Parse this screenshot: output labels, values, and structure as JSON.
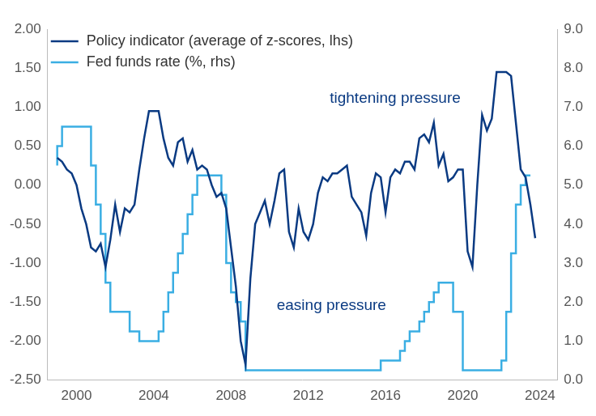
{
  "chart_data": {
    "type": "line",
    "legend": "upper left",
    "grid": false,
    "x": [
      1999.0,
      1999.25,
      1999.5,
      1999.75,
      2000.0,
      2000.25,
      2000.5,
      2000.75,
      2001.0,
      2001.25,
      2001.5,
      2001.75,
      2002.0,
      2002.25,
      2002.5,
      2002.75,
      2003.0,
      2003.25,
      2003.5,
      2003.75,
      2004.0,
      2004.25,
      2004.5,
      2004.75,
      2005.0,
      2005.25,
      2005.5,
      2005.75,
      2006.0,
      2006.25,
      2006.5,
      2006.75,
      2007.0,
      2007.25,
      2007.5,
      2007.75,
      2008.0,
      2008.25,
      2008.5,
      2008.75,
      2009.0,
      2009.25,
      2009.5,
      2009.75,
      2010.0,
      2010.25,
      2010.5,
      2010.75,
      2011.0,
      2011.25,
      2011.5,
      2011.75,
      2012.0,
      2012.25,
      2012.5,
      2012.75,
      2013.0,
      2013.25,
      2013.5,
      2013.75,
      2014.0,
      2014.25,
      2014.5,
      2014.75,
      2015.0,
      2015.25,
      2015.5,
      2015.75,
      2016.0,
      2016.25,
      2016.5,
      2016.75,
      2017.0,
      2017.25,
      2017.5,
      2017.75,
      2018.0,
      2018.25,
      2018.5,
      2018.75,
      2019.0,
      2019.25,
      2019.5,
      2019.75,
      2020.0,
      2020.25,
      2020.5,
      2020.75,
      2021.0,
      2021.25,
      2021.5,
      2021.75,
      2022.0,
      2022.25,
      2022.5,
      2022.75,
      2023.0,
      2023.25,
      2023.5,
      2023.75
    ],
    "xlim": [
      1998.5,
      2024.9
    ],
    "xticks": [
      2000,
      2004,
      2008,
      2012,
      2016,
      2020,
      2024
    ],
    "ylim": [
      -2.5,
      2.0
    ],
    "yticks": [
      {
        "value": -2.5,
        "label": "-2.50"
      },
      {
        "value": -2.0,
        "label": "-2.00"
      },
      {
        "value": -1.5,
        "label": "-1.50"
      },
      {
        "value": -1.0,
        "label": "-1.00"
      },
      {
        "value": -0.5,
        "label": "-0.50"
      },
      {
        "value": 0,
        "label": "0.00"
      },
      {
        "value": 0.5,
        "label": "0.50"
      },
      {
        "value": 1.0,
        "label": "1.00"
      },
      {
        "value": 1.5,
        "label": "1.50"
      },
      {
        "value": 2.0,
        "label": "2.00"
      }
    ],
    "y2lim": [
      0,
      9
    ],
    "y2ticks": [
      {
        "value": 0,
        "label": "0.0"
      },
      {
        "value": 1,
        "label": "1.0"
      },
      {
        "value": 2,
        "label": "2.0"
      },
      {
        "value": 3,
        "label": "3.0"
      },
      {
        "value": 4,
        "label": "4.0"
      },
      {
        "value": 5,
        "label": "5.0"
      },
      {
        "value": 6,
        "label": "6.0"
      },
      {
        "value": 7,
        "label": "7.0"
      },
      {
        "value": 8,
        "label": "8.0"
      },
      {
        "value": 9,
        "label": "9.0"
      }
    ],
    "series": [
      {
        "name": "Policy indicator (average of z-scores, lhs)",
        "color": "#0a3a82",
        "line_style": "solid",
        "values": [
          0.35,
          0.3,
          0.2,
          0.15,
          0.0,
          -0.3,
          -0.5,
          -0.8,
          -0.85,
          -0.75,
          -1.05,
          -0.7,
          -0.25,
          -0.6,
          -0.3,
          -0.35,
          -0.25,
          0.2,
          0.6,
          0.95,
          0.95,
          0.95,
          0.6,
          0.35,
          0.25,
          0.55,
          0.6,
          0.3,
          0.45,
          0.2,
          0.25,
          0.2,
          0.0,
          -0.15,
          -0.1,
          -0.3,
          -0.8,
          -1.3,
          -2.0,
          -2.3,
          -1.2,
          -0.5,
          -0.35,
          -0.2,
          -0.5,
          -0.2,
          0.15,
          0.2,
          -0.6,
          -0.8,
          -0.3,
          -0.6,
          -0.7,
          -0.5,
          -0.1,
          0.1,
          0.05,
          0.15,
          0.15,
          0.2,
          0.25,
          -0.15,
          -0.25,
          -0.35,
          -0.65,
          -0.1,
          0.15,
          0.1,
          -0.35,
          0.1,
          0.2,
          0.15,
          0.3,
          0.3,
          0.2,
          0.6,
          0.65,
          0.55,
          0.8,
          0.25,
          0.4,
          0.05,
          0.1,
          0.2,
          0.2,
          -0.85,
          -1.05,
          0.0,
          0.9,
          0.7,
          0.85,
          1.45,
          1.45,
          1.45,
          1.4,
          0.8,
          0.2,
          0.1,
          -0.25,
          -0.68
        ]
      },
      {
        "name": "Fed funds rate (%, rhs)",
        "color": "#3aaee3",
        "line_style": "steps",
        "axis": "y2",
        "values": [
          5.5,
          6.0,
          6.5,
          6.5,
          6.5,
          6.5,
          6.5,
          6.5,
          5.5,
          4.5,
          3.75,
          2.5,
          1.75,
          1.75,
          1.75,
          1.75,
          1.25,
          1.25,
          1.0,
          1.0,
          1.0,
          1.0,
          1.25,
          1.75,
          2.25,
          2.75,
          3.25,
          3.75,
          4.25,
          4.75,
          5.25,
          5.25,
          5.25,
          5.25,
          5.25,
          4.75,
          3.0,
          2.25,
          2.0,
          1.5,
          0.25,
          0.25,
          0.25,
          0.25,
          0.25,
          0.25,
          0.25,
          0.25,
          0.25,
          0.25,
          0.25,
          0.25,
          0.25,
          0.25,
          0.25,
          0.25,
          0.25,
          0.25,
          0.25,
          0.25,
          0.25,
          0.25,
          0.25,
          0.25,
          0.25,
          0.25,
          0.25,
          0.25,
          0.5,
          0.5,
          0.5,
          0.5,
          0.75,
          1.0,
          1.25,
          1.25,
          1.5,
          1.75,
          2.0,
          2.25,
          2.5,
          2.5,
          2.5,
          1.75,
          1.75,
          0.25,
          0.25,
          0.25,
          0.25,
          0.25,
          0.25,
          0.25,
          0.25,
          0.5,
          1.75,
          3.25,
          4.5,
          5.0,
          5.25,
          null
        ]
      }
    ],
    "annotations": [
      {
        "text": "tightening pressure",
        "x": 2016.5,
        "y": 1.11
      },
      {
        "text": "easing pressure",
        "x": 2013.2,
        "y": -1.55
      }
    ]
  }
}
